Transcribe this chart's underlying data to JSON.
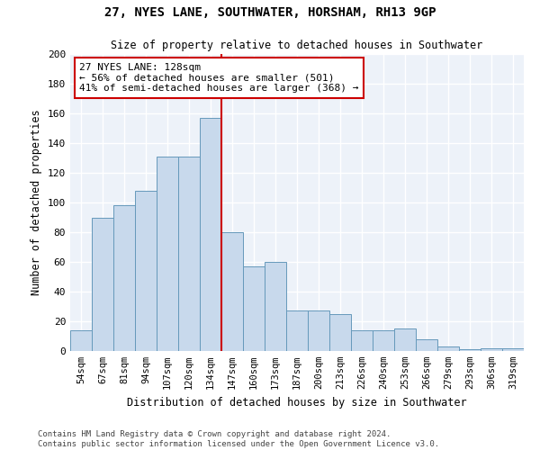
{
  "title": "27, NYES LANE, SOUTHWATER, HORSHAM, RH13 9GP",
  "subtitle": "Size of property relative to detached houses in Southwater",
  "xlabel": "Distribution of detached houses by size in Southwater",
  "ylabel": "Number of detached properties",
  "bar_color": "#c8d9ec",
  "bar_edge_color": "#6699bb",
  "background_color": "#edf2f9",
  "grid_color": "#ffffff",
  "categories": [
    "54sqm",
    "67sqm",
    "81sqm",
    "94sqm",
    "107sqm",
    "120sqm",
    "134sqm",
    "147sqm",
    "160sqm",
    "173sqm",
    "187sqm",
    "200sqm",
    "213sqm",
    "226sqm",
    "240sqm",
    "253sqm",
    "266sqm",
    "279sqm",
    "293sqm",
    "306sqm",
    "319sqm"
  ],
  "values": [
    14,
    90,
    98,
    108,
    131,
    131,
    157,
    80,
    57,
    60,
    27,
    27,
    25,
    14,
    14,
    15,
    8,
    3,
    1,
    2,
    2
  ],
  "vline_pos": 6.5,
  "vline_color": "#cc0000",
  "annotation_text": "27 NYES LANE: 128sqm\n← 56% of detached houses are smaller (501)\n41% of semi-detached houses are larger (368) →",
  "annotation_box_color": "#ffffff",
  "annotation_box_edge_color": "#cc0000",
  "ylim": [
    0,
    200
  ],
  "yticks": [
    0,
    20,
    40,
    60,
    80,
    100,
    120,
    140,
    160,
    180,
    200
  ],
  "footer_line1": "Contains HM Land Registry data © Crown copyright and database right 2024.",
  "footer_line2": "Contains public sector information licensed under the Open Government Licence v3.0."
}
